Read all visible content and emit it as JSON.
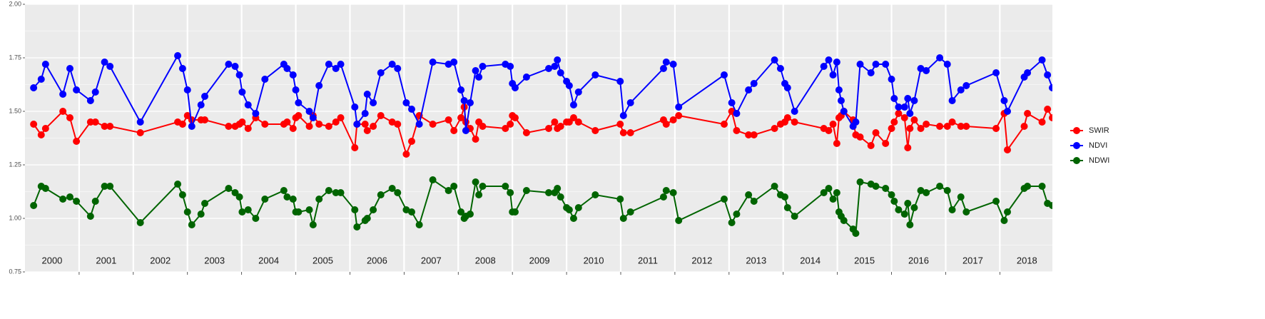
{
  "chart_data": {
    "type": "line",
    "x": [
      2000.16,
      2000.3,
      2000.38,
      2000.7,
      2000.83,
      2000.95,
      2001.21,
      2001.3,
      2001.47,
      2001.57,
      2002.13,
      2002.82,
      2002.91,
      2003.0,
      2003.08,
      2003.25,
      2003.32,
      2003.76,
      2003.88,
      2003.96,
      2004.01,
      2004.12,
      2004.26,
      2004.43,
      2004.78,
      2004.84,
      2004.95,
      2005.0,
      2005.05,
      2005.25,
      2005.32,
      2005.43,
      2005.61,
      2005.74,
      2005.83,
      2006.09,
      2006.13,
      2006.28,
      2006.32,
      2006.43,
      2006.57,
      2006.78,
      2006.88,
      2007.04,
      2007.14,
      2007.28,
      2007.53,
      2007.82,
      2007.92,
      2008.05,
      2008.11,
      2008.14,
      2008.22,
      2008.32,
      2008.38,
      2008.45,
      2008.87,
      2008.96,
      2009.0,
      2009.05,
      2009.26,
      2009.67,
      2009.78,
      2009.83,
      2009.89,
      2010.0,
      2010.05,
      2010.13,
      2010.22,
      2010.53,
      2010.99,
      2011.05,
      2011.18,
      2011.79,
      2011.84,
      2011.97,
      2012.07,
      2012.91,
      2013.05,
      2013.14,
      2013.36,
      2013.46,
      2013.84,
      2013.95,
      2014.03,
      2014.08,
      2014.21,
      2014.75,
      2014.84,
      2014.92,
      2014.99,
      2015.03,
      2015.07,
      2015.12,
      2015.29,
      2015.34,
      2015.42,
      2015.62,
      2015.71,
      2015.89,
      2016.0,
      2016.05,
      2016.13,
      2016.24,
      2016.3,
      2016.34,
      2016.42,
      2016.54,
      2016.64,
      2016.89,
      2017.03,
      2017.12,
      2017.28,
      2017.38,
      2017.93,
      2018.08,
      2018.14,
      2018.45,
      2018.51,
      2018.78,
      2018.88,
      2018.97
    ],
    "series": [
      {
        "name": "SWIR",
        "color": "#ff0000",
        "values": [
          1.44,
          1.39,
          1.42,
          1.5,
          1.47,
          1.36,
          1.45,
          1.45,
          1.43,
          1.43,
          1.4,
          1.45,
          1.44,
          1.48,
          1.46,
          1.46,
          1.46,
          1.43,
          1.43,
          1.44,
          1.45,
          1.42,
          1.47,
          1.44,
          1.44,
          1.45,
          1.42,
          1.47,
          1.48,
          1.43,
          1.48,
          1.44,
          1.43,
          1.45,
          1.47,
          1.33,
          1.44,
          1.44,
          1.41,
          1.43,
          1.48,
          1.45,
          1.44,
          1.3,
          1.36,
          1.48,
          1.44,
          1.46,
          1.41,
          1.47,
          1.52,
          1.45,
          1.42,
          1.37,
          1.45,
          1.43,
          1.42,
          1.44,
          1.48,
          1.47,
          1.4,
          1.42,
          1.45,
          1.42,
          1.43,
          1.45,
          1.45,
          1.47,
          1.45,
          1.41,
          1.44,
          1.4,
          1.4,
          1.46,
          1.44,
          1.46,
          1.48,
          1.44,
          1.5,
          1.41,
          1.39,
          1.39,
          1.42,
          1.44,
          1.45,
          1.47,
          1.45,
          1.42,
          1.41,
          1.44,
          1.35,
          1.47,
          1.48,
          1.5,
          1.46,
          1.39,
          1.38,
          1.34,
          1.4,
          1.35,
          1.42,
          1.45,
          1.49,
          1.47,
          1.33,
          1.42,
          1.46,
          1.42,
          1.44,
          1.43,
          1.43,
          1.45,
          1.43,
          1.43,
          1.42,
          1.49,
          1.32,
          1.43,
          1.49,
          1.45,
          1.51,
          1.47
        ]
      },
      {
        "name": "NDVI",
        "color": "#0000ff",
        "values": [
          1.61,
          1.65,
          1.72,
          1.58,
          1.7,
          1.6,
          1.55,
          1.59,
          1.73,
          1.71,
          1.45,
          1.76,
          1.7,
          1.6,
          1.43,
          1.53,
          1.57,
          1.72,
          1.71,
          1.67,
          1.59,
          1.53,
          1.49,
          1.65,
          1.72,
          1.7,
          1.67,
          1.6,
          1.54,
          1.5,
          1.47,
          1.62,
          1.72,
          1.7,
          1.72,
          1.52,
          1.44,
          1.49,
          1.58,
          1.54,
          1.68,
          1.72,
          1.7,
          1.54,
          1.51,
          1.44,
          1.73,
          1.72,
          1.73,
          1.6,
          1.55,
          1.41,
          1.54,
          1.69,
          1.66,
          1.71,
          1.72,
          1.71,
          1.63,
          1.61,
          1.66,
          1.7,
          1.71,
          1.74,
          1.68,
          1.64,
          1.62,
          1.53,
          1.59,
          1.67,
          1.64,
          1.48,
          1.54,
          1.7,
          1.73,
          1.72,
          1.52,
          1.67,
          1.54,
          1.49,
          1.6,
          1.63,
          1.74,
          1.7,
          1.63,
          1.61,
          1.5,
          1.71,
          1.74,
          1.67,
          1.73,
          1.6,
          1.55,
          1.5,
          1.43,
          1.45,
          1.72,
          1.68,
          1.72,
          1.72,
          1.65,
          1.56,
          1.52,
          1.52,
          1.56,
          1.49,
          1.55,
          1.7,
          1.69,
          1.75,
          1.72,
          1.55,
          1.6,
          1.62,
          1.68,
          1.55,
          1.5,
          1.66,
          1.68,
          1.74,
          1.67,
          1.61
        ]
      },
      {
        "name": "NDWI",
        "color": "#006400",
        "values": [
          1.06,
          1.15,
          1.14,
          1.09,
          1.1,
          1.08,
          1.01,
          1.08,
          1.15,
          1.15,
          0.98,
          1.16,
          1.11,
          1.03,
          0.97,
          1.02,
          1.07,
          1.14,
          1.12,
          1.1,
          1.03,
          1.04,
          1.0,
          1.09,
          1.13,
          1.1,
          1.09,
          1.03,
          1.03,
          1.04,
          0.97,
          1.09,
          1.13,
          1.12,
          1.12,
          1.04,
          0.96,
          0.99,
          1.0,
          1.04,
          1.11,
          1.14,
          1.12,
          1.04,
          1.03,
          0.97,
          1.18,
          1.13,
          1.15,
          1.03,
          1.0,
          1.01,
          1.02,
          1.17,
          1.11,
          1.15,
          1.15,
          1.12,
          1.03,
          1.03,
          1.13,
          1.12,
          1.12,
          1.14,
          1.1,
          1.05,
          1.04,
          1.0,
          1.05,
          1.11,
          1.09,
          1.0,
          1.03,
          1.1,
          1.13,
          1.12,
          0.99,
          1.09,
          0.98,
          1.02,
          1.11,
          1.08,
          1.15,
          1.11,
          1.1,
          1.05,
          1.01,
          1.12,
          1.14,
          1.09,
          1.12,
          1.03,
          1.01,
          0.99,
          0.95,
          0.93,
          1.17,
          1.16,
          1.15,
          1.14,
          1.11,
          1.08,
          1.04,
          1.02,
          1.07,
          0.97,
          1.05,
          1.13,
          1.12,
          1.15,
          1.13,
          1.04,
          1.1,
          1.03,
          1.08,
          0.99,
          1.03,
          1.14,
          1.15,
          1.15,
          1.07,
          1.06
        ]
      }
    ],
    "xlim": [
      2000,
      2018.97
    ],
    "xticks": [
      2001,
      2002,
      2003,
      2004,
      2005,
      2006,
      2007,
      2008,
      2009,
      2010,
      2011,
      2012,
      2013,
      2014,
      2015,
      2016,
      2017,
      2018
    ],
    "year_labels": [
      {
        "value": 2000.5,
        "label": "2000"
      },
      {
        "value": 2001.5,
        "label": "2001"
      },
      {
        "value": 2002.5,
        "label": "2002"
      },
      {
        "value": 2003.5,
        "label": "2003"
      },
      {
        "value": 2004.5,
        "label": "2004"
      },
      {
        "value": 2005.5,
        "label": "2005"
      },
      {
        "value": 2006.5,
        "label": "2006"
      },
      {
        "value": 2007.5,
        "label": "2007"
      },
      {
        "value": 2008.5,
        "label": "2008"
      },
      {
        "value": 2009.5,
        "label": "2009"
      },
      {
        "value": 2010.5,
        "label": "2010"
      },
      {
        "value": 2011.5,
        "label": "2011"
      },
      {
        "value": 2012.5,
        "label": "2012"
      },
      {
        "value": 2013.5,
        "label": "2013"
      },
      {
        "value": 2014.5,
        "label": "2014"
      },
      {
        "value": 2015.5,
        "label": "2015"
      },
      {
        "value": 2016.5,
        "label": "2016"
      },
      {
        "value": 2017.5,
        "label": "2017"
      },
      {
        "value": 2018.5,
        "label": "2018"
      }
    ],
    "ylim": [
      0.75,
      2.0
    ],
    "yticks": [
      0.75,
      {
        "value": 1.0,
        "label": "1.00"
      },
      1.25,
      {
        "value": 1.5,
        "label": "1.50"
      },
      1.75,
      {
        "value": 2.0,
        "label": "2.00"
      }
    ],
    "grid": true,
    "legend": "right"
  }
}
